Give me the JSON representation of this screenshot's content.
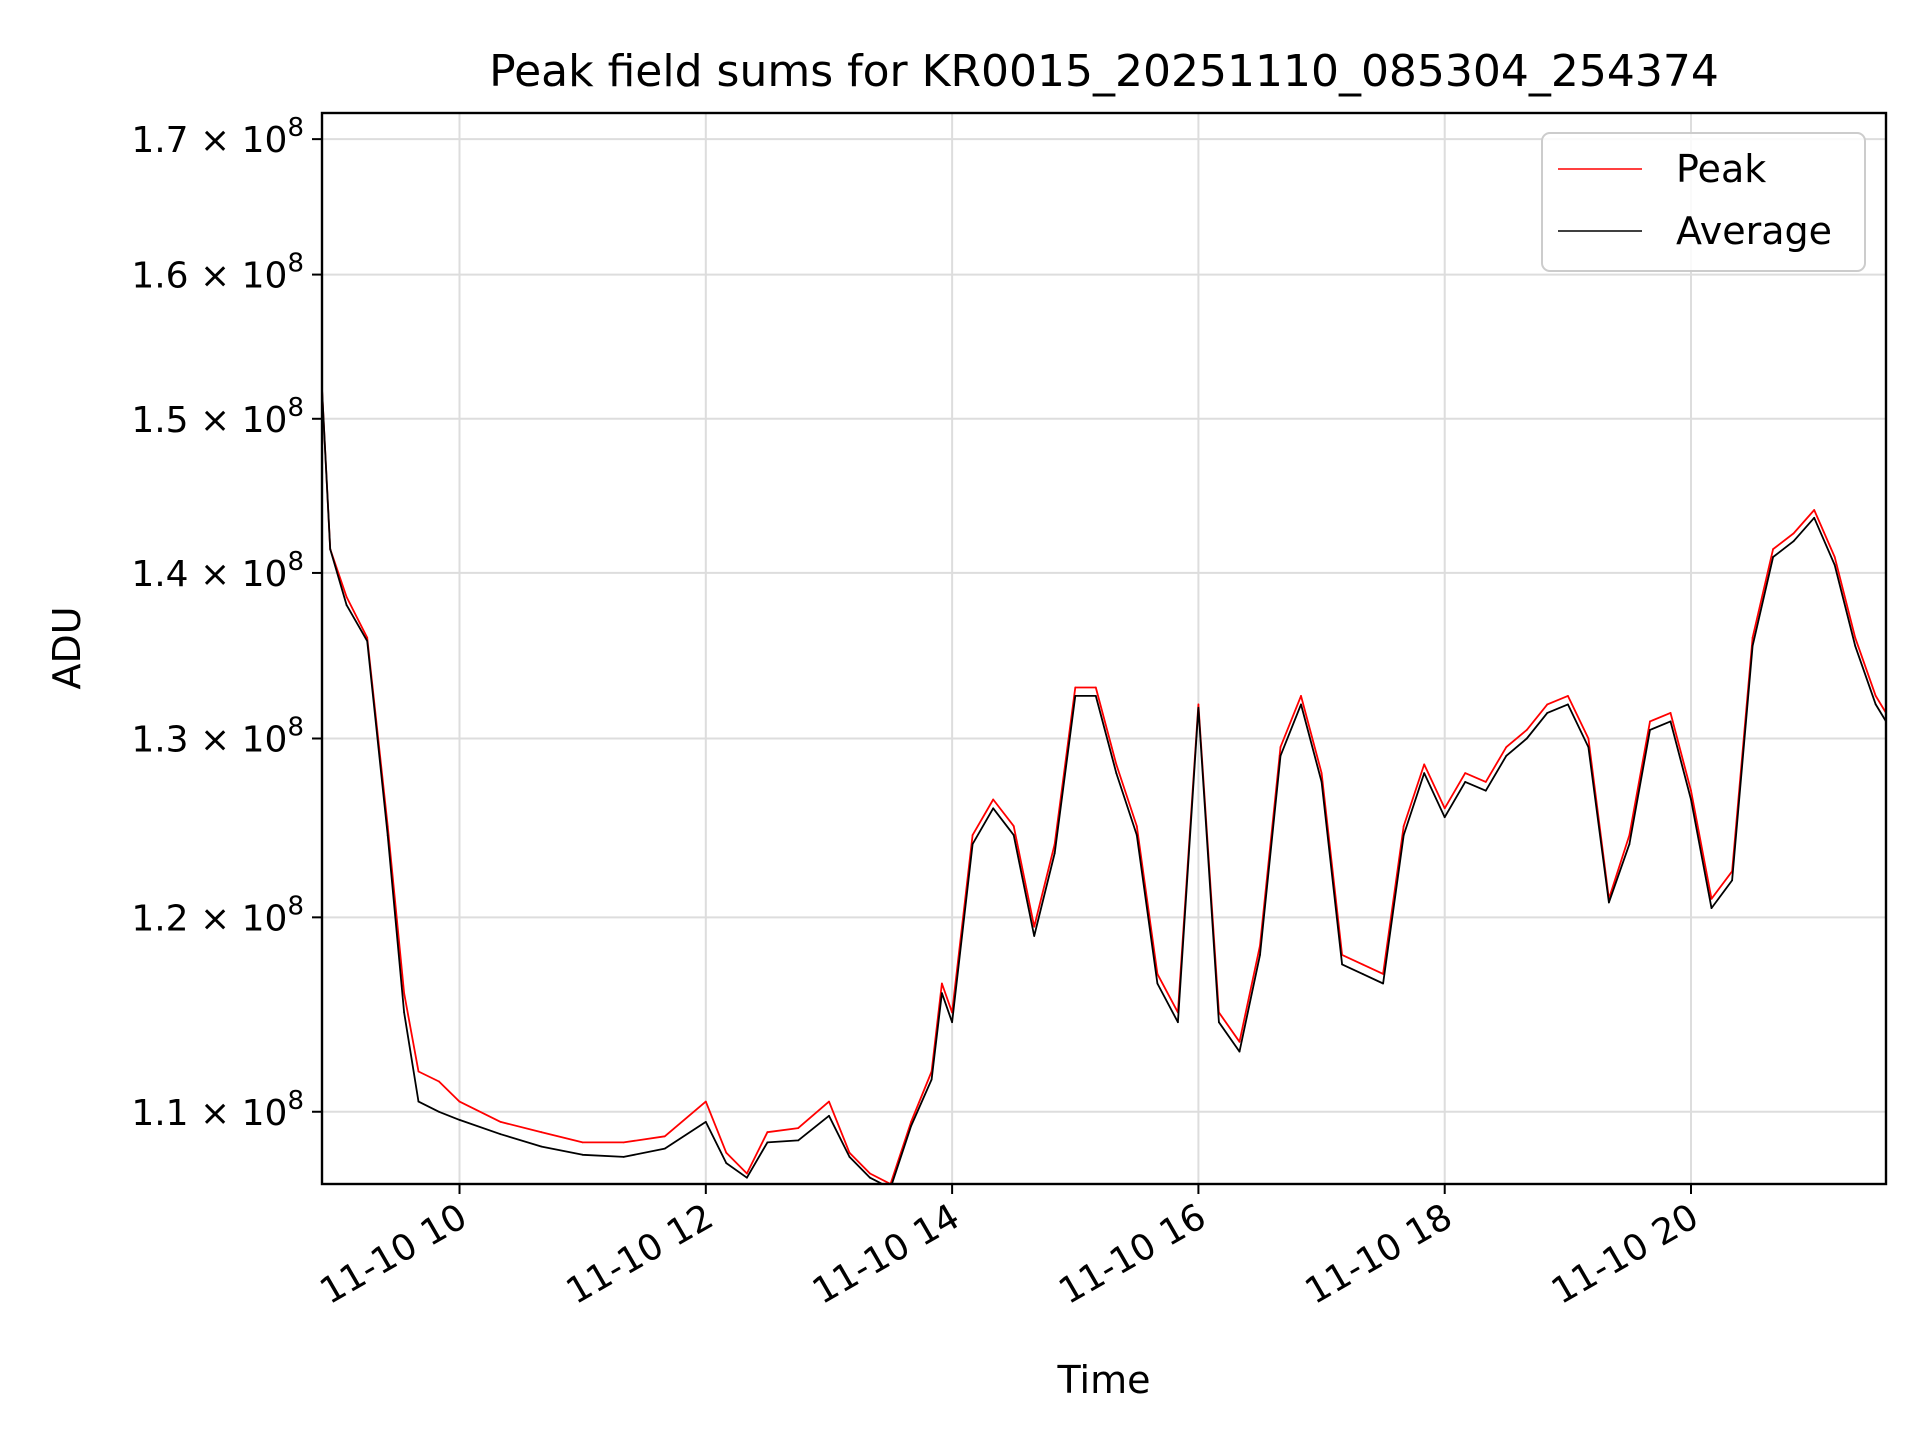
{
  "chart_data": {
    "type": "line",
    "title": "Peak field sums for KR0015_20251110_085304_254374",
    "xlabel": "Time",
    "ylabel": "ADU",
    "y_scale": "log",
    "grid": true,
    "legend_position": "top-right",
    "xlim": [
      "2025-11-10 08:53",
      "2025-11-10 21:35"
    ],
    "ylim": [
      106500000,
      172000000
    ],
    "x_ticks": [
      {
        "value": "2025-11-10 10:00",
        "label": "11-10 10"
      },
      {
        "value": "2025-11-10 12:00",
        "label": "11-10 12"
      },
      {
        "value": "2025-11-10 14:00",
        "label": "11-10 14"
      },
      {
        "value": "2025-11-10 16:00",
        "label": "11-10 16"
      },
      {
        "value": "2025-11-10 18:00",
        "label": "11-10 18"
      },
      {
        "value": "2025-11-10 20:00",
        "label": "11-10 20"
      }
    ],
    "y_ticks": [
      {
        "value": 110000000,
        "mantissa": "1.1",
        "exponent": "8"
      },
      {
        "value": 120000000,
        "mantissa": "1.2",
        "exponent": "8"
      },
      {
        "value": 130000000,
        "mantissa": "1.3",
        "exponent": "8"
      },
      {
        "value": 140000000,
        "mantissa": "1.4",
        "exponent": "8"
      },
      {
        "value": 150000000,
        "mantissa": "1.5",
        "exponent": "8"
      },
      {
        "value": 160000000,
        "mantissa": "1.6",
        "exponent": "8"
      },
      {
        "value": 170000000,
        "mantissa": "1.7",
        "exponent": "8"
      }
    ],
    "times_symbol": "×",
    "x": [
      "2025-11-10 08:53",
      "2025-11-10 08:57",
      "2025-11-10 09:05",
      "2025-11-10 09:15",
      "2025-11-10 09:25",
      "2025-11-10 09:33",
      "2025-11-10 09:40",
      "2025-11-10 09:50",
      "2025-11-10 10:00",
      "2025-11-10 10:20",
      "2025-11-10 10:40",
      "2025-11-10 11:00",
      "2025-11-10 11:20",
      "2025-11-10 11:40",
      "2025-11-10 12:00",
      "2025-11-10 12:10",
      "2025-11-10 12:20",
      "2025-11-10 12:30",
      "2025-11-10 12:45",
      "2025-11-10 13:00",
      "2025-11-10 13:10",
      "2025-11-10 13:20",
      "2025-11-10 13:30",
      "2025-11-10 13:40",
      "2025-11-10 13:50",
      "2025-11-10 13:55",
      "2025-11-10 14:00",
      "2025-11-10 14:10",
      "2025-11-10 14:20",
      "2025-11-10 14:30",
      "2025-11-10 14:40",
      "2025-11-10 14:50",
      "2025-11-10 15:00",
      "2025-11-10 15:10",
      "2025-11-10 15:20",
      "2025-11-10 15:30",
      "2025-11-10 15:40",
      "2025-11-10 15:50",
      "2025-11-10 16:00",
      "2025-11-10 16:10",
      "2025-11-10 16:20",
      "2025-11-10 16:30",
      "2025-11-10 16:40",
      "2025-11-10 16:50",
      "2025-11-10 17:00",
      "2025-11-10 17:10",
      "2025-11-10 17:20",
      "2025-11-10 17:30",
      "2025-11-10 17:40",
      "2025-11-10 17:50",
      "2025-11-10 18:00",
      "2025-11-10 18:10",
      "2025-11-10 18:20",
      "2025-11-10 18:30",
      "2025-11-10 18:40",
      "2025-11-10 18:50",
      "2025-11-10 19:00",
      "2025-11-10 19:10",
      "2025-11-10 19:20",
      "2025-11-10 19:30",
      "2025-11-10 19:40",
      "2025-11-10 19:50",
      "2025-11-10 20:00",
      "2025-11-10 20:10",
      "2025-11-10 20:20",
      "2025-11-10 20:30",
      "2025-11-10 20:40",
      "2025-11-10 20:50",
      "2025-11-10 21:00",
      "2025-11-10 21:10",
      "2025-11-10 21:20",
      "2025-11-10 21:30",
      "2025-11-10 21:35"
    ],
    "series": [
      {
        "name": "Peak",
        "color": "#ff0000",
        "values": [
          152000000,
          141500000,
          138500000,
          136000000,
          125000000,
          116000000,
          112000000,
          111500000,
          110500000,
          109500000,
          109000000,
          108500000,
          108500000,
          108800000,
          110500000,
          108000000,
          107000000,
          109000000,
          109200000,
          110500000,
          108000000,
          107000000,
          106500000,
          109500000,
          112000000,
          116500000,
          115000000,
          124500000,
          126500000,
          125000000,
          119500000,
          124000000,
          133000000,
          133000000,
          128500000,
          125000000,
          117000000,
          115000000,
          132000000,
          115000000,
          113500000,
          118500000,
          129500000,
          132500000,
          128000000,
          118000000,
          117500000,
          117000000,
          125000000,
          128500000,
          126000000,
          128000000,
          127500000,
          129500000,
          130500000,
          132000000,
          132500000,
          130000000,
          121000000,
          124500000,
          131000000,
          131500000,
          127000000,
          121000000,
          122500000,
          136000000,
          141500000,
          142500000,
          144000000,
          141000000,
          136000000,
          132500000,
          131500000
        ]
      },
      {
        "name": "Average",
        "color": "#000000",
        "values": [
          152000000,
          141500000,
          138000000,
          135800000,
          124500000,
          115000000,
          110500000,
          110000000,
          109600000,
          108900000,
          108300000,
          107900000,
          107800000,
          108200000,
          109500000,
          107500000,
          106800000,
          108500000,
          108600000,
          109800000,
          107800000,
          106800000,
          106300000,
          109300000,
          111600000,
          116000000,
          114500000,
          124000000,
          126000000,
          124500000,
          119000000,
          123500000,
          132500000,
          132500000,
          128000000,
          124500000,
          116500000,
          114500000,
          131800000,
          114500000,
          113000000,
          118000000,
          129000000,
          132000000,
          127500000,
          117500000,
          117000000,
          116500000,
          124500000,
          128000000,
          125500000,
          127500000,
          127000000,
          129000000,
          130000000,
          131500000,
          132000000,
          129500000,
          120800000,
          124000000,
          130500000,
          131000000,
          126500000,
          120500000,
          122000000,
          135500000,
          141000000,
          142000000,
          143500000,
          140500000,
          135500000,
          132000000,
          131000000
        ]
      }
    ]
  }
}
